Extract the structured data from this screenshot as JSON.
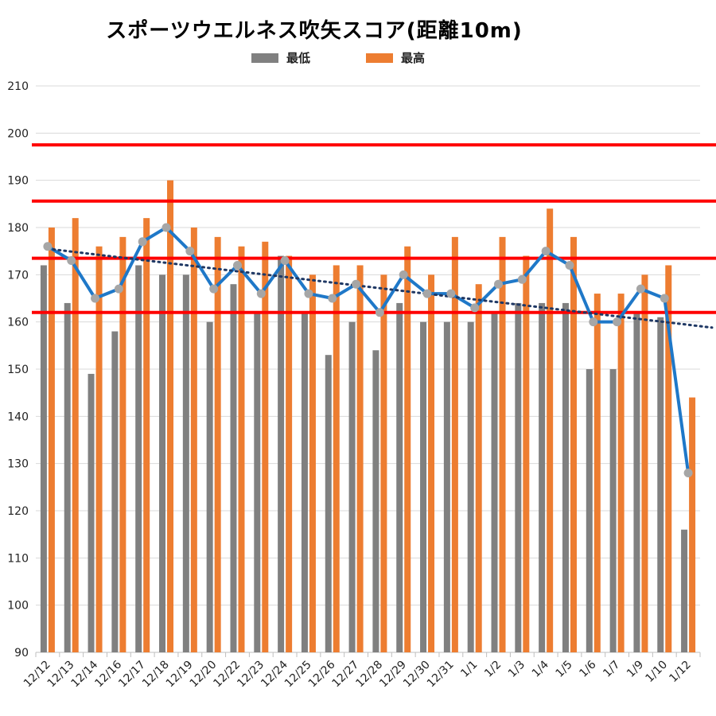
{
  "chart_data": {
    "type": "bar",
    "title": "スポーツウエルネス吹矢スコア(距離10m)",
    "xlabel": "",
    "ylabel": "",
    "ylim": [
      90,
      210
    ],
    "yticks": [
      90,
      100,
      110,
      120,
      130,
      140,
      150,
      160,
      170,
      180,
      190,
      200,
      210
    ],
    "grid": true,
    "legend_position": "top",
    "categories": [
      "12/12",
      "12/13",
      "12/14",
      "12/16",
      "12/17",
      "12/18",
      "12/19",
      "12/20",
      "12/22",
      "12/23",
      "12/24",
      "12/25",
      "12/26",
      "12/27",
      "12/28",
      "12/29",
      "12/30",
      "12/31",
      "1/1",
      "1/2",
      "1/3",
      "1/4",
      "1/5",
      "1/6",
      "1/7",
      "1/9",
      "1/10",
      "1/12"
    ],
    "series": [
      {
        "name": "最低",
        "type": "bar",
        "color": "#808080",
        "values": [
          172,
          164,
          149,
          158,
          172,
          170,
          170,
          160,
          168,
          162,
          174,
          162,
          153,
          160,
          154,
          164,
          160,
          160,
          160,
          162,
          164,
          164,
          164,
          150,
          150,
          162,
          161,
          116
        ]
      },
      {
        "name": "最高",
        "type": "bar",
        "color": "#ED7D31",
        "values": [
          180,
          182,
          176,
          178,
          182,
          190,
          180,
          178,
          176,
          177,
          174,
          170,
          172,
          172,
          170,
          176,
          170,
          178,
          168,
          178,
          174,
          184,
          178,
          166,
          166,
          170,
          172,
          144
        ]
      },
      {
        "type": "line",
        "color": "#1F78C8",
        "marker_color": "#A6A6A6",
        "values": [
          176,
          173,
          165,
          167,
          177,
          180,
          175,
          167,
          172,
          166,
          173,
          166,
          165,
          168,
          162,
          170,
          166,
          166,
          163,
          168,
          169,
          175,
          172,
          160,
          160,
          167,
          165,
          128
        ]
      }
    ],
    "trendline": {
      "color": "#1F3864",
      "style": "dotted",
      "start": 175.5,
      "end": 158.8
    },
    "reference_lines": {
      "color": "#FF0000",
      "values": [
        162,
        173.5,
        185.6,
        197.5
      ]
    }
  }
}
